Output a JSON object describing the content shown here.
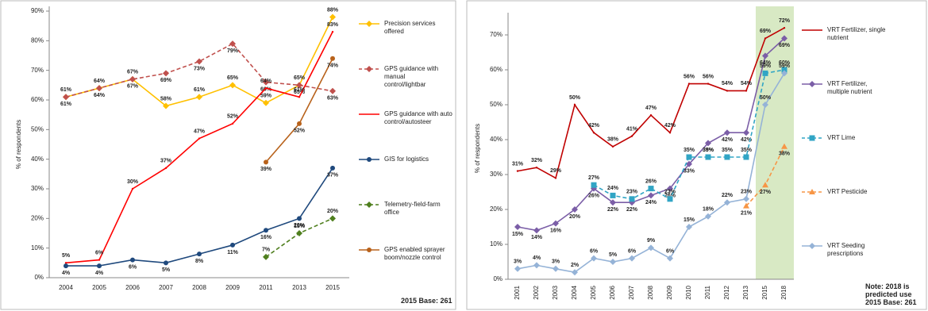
{
  "chart_data": [
    {
      "type": "line",
      "y_label": "% of respondents",
      "categories": [
        "2004",
        "2005",
        "2006",
        "2007",
        "2008",
        "2009",
        "2011",
        "2013",
        "2015"
      ],
      "ylim": [
        0,
        90
      ],
      "yticks": [
        {
          "value": 0,
          "label": "0%"
        },
        {
          "value": 10,
          "label": "10%"
        },
        {
          "value": 20,
          "label": "20%"
        },
        {
          "value": 30,
          "label": "30%"
        },
        {
          "value": 40,
          "label": "40%"
        },
        {
          "value": 50,
          "label": "50%"
        },
        {
          "value": 60,
          "label": "60%"
        },
        {
          "value": 70,
          "label": "70%"
        },
        {
          "value": 80,
          "label": "80%"
        },
        {
          "value": 90,
          "label": "90%"
        }
      ],
      "notes": [
        "2015 Base: 261"
      ],
      "series": [
        {
          "name": "Precision services offered",
          "color": "#ffc000",
          "dashed": false,
          "marker": "diamond",
          "values": [
            61,
            64,
            67,
            58,
            61,
            65,
            59,
            65,
            88
          ],
          "value_labels": [
            "61%",
            "64%",
            "67%",
            "58%",
            "61%",
            "65%",
            "59%",
            "65%",
            "88%"
          ]
        },
        {
          "name": "GPS guidance with manual control/lightbar",
          "color": "#c0504d",
          "dashed": true,
          "marker": "diamond",
          "values": [
            61,
            64,
            67,
            69,
            73,
            79,
            66,
            65,
            63
          ],
          "value_labels": [
            "61%",
            "64%",
            "67%",
            "69%",
            "73%",
            "79%",
            "66%",
            "65%",
            "63%"
          ]
        },
        {
          "name": "GPS guidance with auto control/autosteer",
          "color": "#ff0000",
          "dashed": false,
          "marker": "none",
          "values": [
            5,
            6,
            30,
            37,
            47,
            52,
            64,
            61,
            83
          ],
          "value_labels": [
            "5%",
            "6%",
            "30%",
            "37%",
            "47%",
            "52%",
            "64%",
            "61%",
            "83%"
          ]
        },
        {
          "name": "GIS for logistics",
          "color": "#1f497d",
          "dashed": false,
          "marker": "circle",
          "values": [
            4,
            4,
            6,
            5,
            8,
            11,
            16,
            20,
            37
          ],
          "value_labels": [
            "4%",
            "4%",
            "6%",
            "5%",
            "8%",
            "11%",
            "16%",
            "20%",
            "37%"
          ]
        },
        {
          "name": "Telemetry-field-farm office",
          "color": "#4f7f1e",
          "dashed": true,
          "marker": "diamond",
          "values": [
            null,
            null,
            null,
            null,
            null,
            null,
            7,
            15,
            20
          ],
          "value_labels": [
            null,
            null,
            null,
            null,
            null,
            null,
            "7%",
            "15%",
            "20%"
          ]
        },
        {
          "name": "GPS enabled sprayer boom/nozzle control",
          "color": "#b8621b",
          "dashed": false,
          "marker": "circle",
          "values": [
            null,
            null,
            null,
            null,
            null,
            null,
            39,
            52,
            74
          ],
          "value_labels": [
            null,
            null,
            null,
            null,
            null,
            null,
            "39%",
            "52%",
            "74%"
          ]
        }
      ]
    },
    {
      "type": "line",
      "y_label": "% of respondents",
      "categories": [
        "2001",
        "2002",
        "2003",
        "2004",
        "2005",
        "2006",
        "2007",
        "2008",
        "2009",
        "2010",
        "2011",
        "2012",
        "2013",
        "2015",
        "2018"
      ],
      "shaded_categories": [
        "2015",
        "2018"
      ],
      "ylim": [
        0,
        75
      ],
      "yticks": [
        {
          "value": 0,
          "label": "0%"
        },
        {
          "value": 10,
          "label": "10%"
        },
        {
          "value": 20,
          "label": "20%"
        },
        {
          "value": 30,
          "label": "30%"
        },
        {
          "value": 40,
          "label": "40%"
        },
        {
          "value": 50,
          "label": "50%"
        },
        {
          "value": 60,
          "label": "60%"
        },
        {
          "value": 70,
          "label": "70%"
        }
      ],
      "notes": [
        "Note: 2018 is predicted use",
        "2015 Base: 261"
      ],
      "series": [
        {
          "name": "VRT Fertilizer, single nutrient",
          "color": "#c00000",
          "dashed": false,
          "marker": "none",
          "values": [
            31,
            32,
            29,
            50,
            42,
            38,
            41,
            47,
            42,
            56,
            56,
            54,
            54,
            69,
            72
          ],
          "value_labels": [
            "31%",
            "32%",
            "29%",
            "50%",
            "42%",
            "38%",
            "41%",
            "47%",
            "42%",
            "56%",
            "56%",
            "54%",
            "54%",
            "69%",
            "72%"
          ]
        },
        {
          "name": "VRT Fertilizer, multiple nutrient",
          "color": "#7b5ea7",
          "dashed": false,
          "marker": "diamond",
          "values": [
            15,
            14,
            16,
            20,
            26,
            22,
            22,
            24,
            26,
            33,
            39,
            42,
            42,
            64,
            69
          ],
          "value_labels": [
            "15%",
            "14%",
            "16%",
            "20%",
            "26%",
            "22%",
            "22%",
            "24%",
            "26%",
            "33%",
            "39%",
            "42%",
            "42%",
            "64%",
            "69%"
          ]
        },
        {
          "name": "VRT Lime",
          "color": "#31a5c5",
          "dashed": true,
          "marker": "square",
          "values": [
            null,
            null,
            null,
            null,
            27,
            24,
            23,
            26,
            23,
            35,
            35,
            35,
            35,
            59,
            60
          ],
          "value_labels": [
            null,
            null,
            null,
            null,
            "27%",
            "24%",
            "23%",
            "26%",
            "23%",
            "35%",
            "35%",
            "35%",
            "35%",
            "59%",
            "60%"
          ]
        },
        {
          "name": "VRT Pesticide",
          "color": "#f79646",
          "dashed": true,
          "marker": "triangle",
          "values": [
            null,
            null,
            null,
            null,
            null,
            null,
            null,
            null,
            null,
            null,
            null,
            null,
            21,
            27,
            38
          ],
          "value_labels": [
            null,
            null,
            null,
            null,
            null,
            null,
            null,
            null,
            null,
            null,
            null,
            null,
            "21%",
            "27%",
            "38%"
          ]
        },
        {
          "name": "VRT Seeding prescriptions",
          "color": "#95b3d7",
          "dashed": false,
          "marker": "diamond",
          "values": [
            3,
            4,
            3,
            2,
            6,
            5,
            6,
            9,
            6,
            15,
            18,
            22,
            23,
            50,
            59
          ],
          "value_labels": [
            "3%",
            "4%",
            "3%",
            "2%",
            "6%",
            "5%",
            "6%",
            "9%",
            "6%",
            "15%",
            "18%",
            "22%",
            "23%",
            "50%",
            "59%"
          ]
        }
      ]
    }
  ]
}
